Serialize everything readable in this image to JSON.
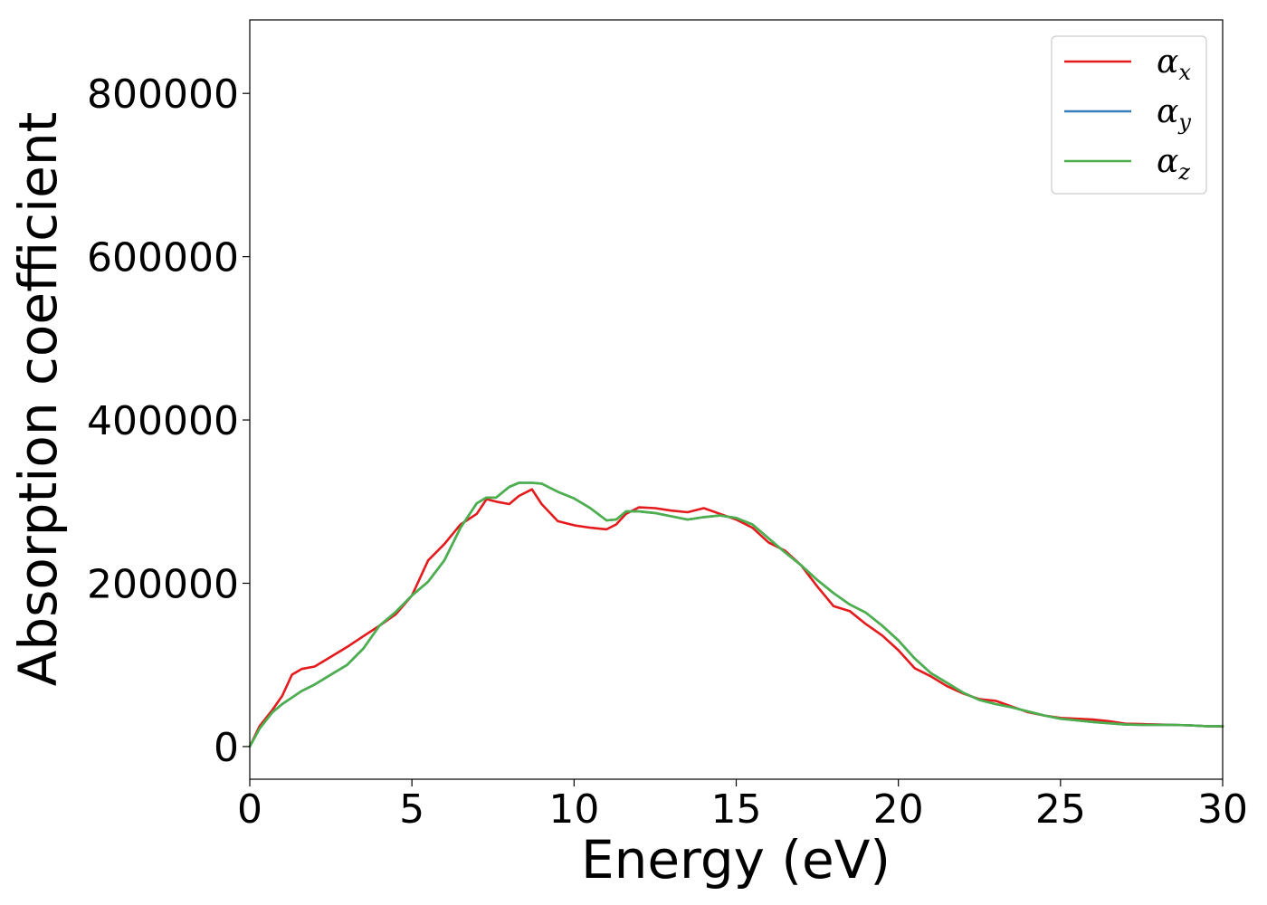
{
  "chart_data": {
    "type": "line",
    "xlabel": "Energy (eV)",
    "ylabel": "Absorption coefficient",
    "xlim": [
      0,
      30
    ],
    "ylim": [
      -40000,
      890000
    ],
    "xticks": [
      0,
      5,
      10,
      15,
      20,
      25,
      30
    ],
    "xtick_labels": [
      "0",
      "5",
      "10",
      "15",
      "20",
      "25",
      "30"
    ],
    "yticks": [
      0,
      200000,
      400000,
      600000,
      800000
    ],
    "ytick_labels": [
      "0",
      "200000",
      "400000",
      "600000",
      "800000"
    ],
    "grid": false,
    "legend_position": "top-right",
    "series": [
      {
        "name": "α_x",
        "legend_base": "α",
        "legend_sub": "x",
        "color": "#e41a1c",
        "x": [
          0,
          0.3,
          0.7,
          1.0,
          1.3,
          1.6,
          2.0,
          2.5,
          3.0,
          3.5,
          4.0,
          4.5,
          5.0,
          5.5,
          6.0,
          6.5,
          7.0,
          7.3,
          7.6,
          8.0,
          8.3,
          8.7,
          9.0,
          9.5,
          10.0,
          10.5,
          11.0,
          11.3,
          11.6,
          12.0,
          12.5,
          13.0,
          13.5,
          14.0,
          14.5,
          15.0,
          15.5,
          16.0,
          16.5,
          17.0,
          17.5,
          18.0,
          18.5,
          19.0,
          19.5,
          20.0,
          20.5,
          21.0,
          21.5,
          22.0,
          22.5,
          23.0,
          23.5,
          24.0,
          24.5,
          25.0,
          25.5,
          26.0,
          26.5,
          27.0,
          27.5,
          28.0,
          28.5,
          29.0,
          29.5,
          30.0
        ],
        "y": [
          0,
          25000,
          45000,
          62000,
          88000,
          95000,
          98000,
          110000,
          122000,
          135000,
          148000,
          162000,
          185000,
          228000,
          248000,
          272000,
          285000,
          303000,
          300000,
          297000,
          307000,
          315000,
          297000,
          276000,
          271000,
          268000,
          266000,
          272000,
          285000,
          293000,
          292000,
          289000,
          287000,
          292000,
          285000,
          278000,
          268000,
          250000,
          240000,
          222000,
          196000,
          172000,
          166000,
          150000,
          136000,
          118000,
          96000,
          86000,
          74000,
          65000,
          58000,
          56000,
          49000,
          42000,
          38000,
          35000,
          34000,
          33000,
          31000,
          28000,
          27500,
          27000,
          26500,
          26000,
          25000,
          24500
        ]
      },
      {
        "name": "α_y",
        "legend_base": "α",
        "legend_sub": "y",
        "color": "#377eb8",
        "x": [
          0,
          0.3,
          0.7,
          1.0,
          1.3,
          1.6,
          2.0,
          2.5,
          3.0,
          3.5,
          4.0,
          4.5,
          5.0,
          5.5,
          6.0,
          6.5,
          7.0,
          7.3,
          7.6,
          8.0,
          8.3,
          8.7,
          9.0,
          9.5,
          10.0,
          10.5,
          11.0,
          11.3,
          11.6,
          12.0,
          12.5,
          13.0,
          13.5,
          14.0,
          14.5,
          15.0,
          15.5,
          16.0,
          16.5,
          17.0,
          17.5,
          18.0,
          18.5,
          19.0,
          19.5,
          20.0,
          20.5,
          21.0,
          21.5,
          22.0,
          22.5,
          23.0,
          23.5,
          24.0,
          24.5,
          25.0,
          25.5,
          26.0,
          26.5,
          27.0,
          27.5,
          28.0,
          28.5,
          29.0,
          29.5,
          30.0
        ],
        "y": [
          0,
          22000,
          42000,
          52000,
          60000,
          68000,
          76000,
          88000,
          100000,
          120000,
          148000,
          165000,
          185000,
          202000,
          228000,
          268000,
          298000,
          305000,
          305000,
          318000,
          323000,
          323000,
          322000,
          312000,
          304000,
          292000,
          277000,
          278000,
          288000,
          288000,
          286000,
          282000,
          278000,
          281000,
          283000,
          280000,
          272000,
          255000,
          238000,
          222000,
          204000,
          188000,
          174000,
          164000,
          148000,
          130000,
          108000,
          90000,
          78000,
          66000,
          57000,
          52000,
          48000,
          43000,
          38000,
          34000,
          32000,
          30000,
          28500,
          27000,
          26500,
          26500,
          26500,
          26000,
          25000,
          25000
        ]
      },
      {
        "name": "α_z",
        "legend_base": "α",
        "legend_sub": "z",
        "color": "#4daf4a",
        "x": [
          0,
          0.3,
          0.7,
          1.0,
          1.3,
          1.6,
          2.0,
          2.5,
          3.0,
          3.5,
          4.0,
          4.5,
          5.0,
          5.5,
          6.0,
          6.5,
          7.0,
          7.3,
          7.6,
          8.0,
          8.3,
          8.7,
          9.0,
          9.5,
          10.0,
          10.5,
          11.0,
          11.3,
          11.6,
          12.0,
          12.5,
          13.0,
          13.5,
          14.0,
          14.5,
          15.0,
          15.5,
          16.0,
          16.5,
          17.0,
          17.5,
          18.0,
          18.5,
          19.0,
          19.5,
          20.0,
          20.5,
          21.0,
          21.5,
          22.0,
          22.5,
          23.0,
          23.5,
          24.0,
          24.5,
          25.0,
          25.5,
          26.0,
          26.5,
          27.0,
          27.5,
          28.0,
          28.5,
          29.0,
          29.5,
          30.0
        ],
        "y": [
          0,
          22000,
          42000,
          52000,
          60000,
          68000,
          76000,
          88000,
          100000,
          120000,
          148000,
          165000,
          185000,
          202000,
          228000,
          268000,
          298000,
          305000,
          305000,
          318000,
          323000,
          323000,
          322000,
          312000,
          304000,
          292000,
          277000,
          278000,
          288000,
          288000,
          286000,
          282000,
          278000,
          281000,
          283000,
          280000,
          272000,
          255000,
          238000,
          222000,
          204000,
          188000,
          174000,
          164000,
          148000,
          130000,
          108000,
          90000,
          78000,
          66000,
          57000,
          52000,
          48000,
          43000,
          38000,
          34000,
          32000,
          30000,
          28500,
          27000,
          26500,
          26500,
          26500,
          26000,
          25000,
          25000
        ]
      }
    ]
  }
}
